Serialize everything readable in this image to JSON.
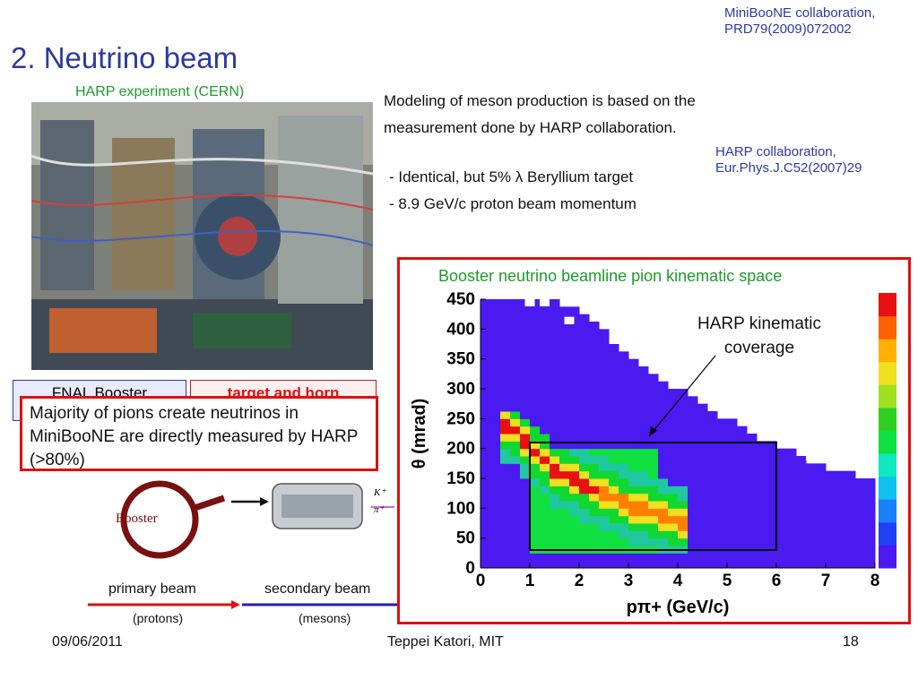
{
  "citations": {
    "miniboone_line1": "MiniBooNE collaboration,",
    "miniboone_line2": "PRD79(2009)072002",
    "harp_line1": "HARP collaboration,",
    "harp_line2": "Eur.Phys.J.C52(2007)29"
  },
  "title": "2. Neutrino beam",
  "photo_caption": "HARP experiment (CERN)",
  "intro": "Modeling of meson production is based on the measurement done by HARP collaboration.",
  "bullets": [
    "- Identical, but 5% λ Beryllium target",
    "- 8.9 GeV/c proton beam momentum"
  ],
  "boxes": {
    "fnal": "FNAL Booster",
    "target": "target and horn"
  },
  "majority_text": "Majority of pions create neutrinos in MiniBooNE are directly measured by HARP (>80%)",
  "diagram": {
    "booster_label": "Booster",
    "kaon": "K⁺",
    "pion": "π⁺",
    "primary_beam": "primary beam",
    "primary_sub": "(protons)",
    "secondary_beam": "secondary beam",
    "secondary_sub": "(mesons)"
  },
  "footer": {
    "date": "09/06/2011",
    "author": "Teppei Katori, MIT",
    "page": "18"
  },
  "chart_data": {
    "type": "heatmap",
    "title": "Booster neutrino beamline pion kinematic space",
    "xlabel": "pπ+ (GeV/c)",
    "ylabel": "θ (mrad)",
    "xlim": [
      0,
      8
    ],
    "ylim": [
      0,
      450
    ],
    "x_ticks": [
      "0",
      "1",
      "2",
      "3",
      "4",
      "5",
      "6",
      "7",
      "8"
    ],
    "y_ticks": [
      "0",
      "50",
      "100",
      "150",
      "200",
      "250",
      "300",
      "350",
      "400",
      "450"
    ],
    "annotation": "HARP kinematic coverage",
    "coverage_box": {
      "x": [
        1,
        6
      ],
      "y": [
        30,
        210
      ]
    },
    "peak_ridge": [
      {
        "p": 0.6,
        "theta": 240
      },
      {
        "p": 1.0,
        "theta": 200
      },
      {
        "p": 1.5,
        "theta": 165
      },
      {
        "p": 2.0,
        "theta": 145
      },
      {
        "p": 2.5,
        "theta": 125
      },
      {
        "p": 3.0,
        "theta": 105
      }
    ],
    "boundary": [
      {
        "p": 0.0,
        "theta": 450
      },
      {
        "p": 1.5,
        "theta": 450
      },
      {
        "p": 2.0,
        "theta": 430
      },
      {
        "p": 3.0,
        "theta": 360
      },
      {
        "p": 4.0,
        "theta": 300
      },
      {
        "p": 5.0,
        "theta": 250
      },
      {
        "p": 6.0,
        "theta": 205
      },
      {
        "p": 7.0,
        "theta": 170
      },
      {
        "p": 8.0,
        "theta": 150
      }
    ]
  }
}
